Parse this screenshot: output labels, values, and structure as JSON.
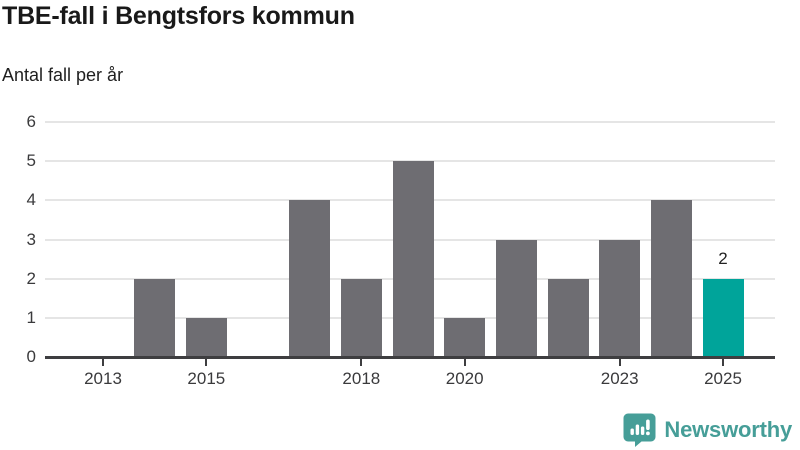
{
  "title": "TBE-fall i Bengtsfors kommun",
  "subtitle": "Antal fall per år",
  "branding": {
    "logo_text": "Newsworthy",
    "logo_icon": "newsworthy-chart-bubble-icon",
    "logo_color": "#469e98"
  },
  "colors": {
    "bar": "#6e6d72",
    "highlight_bar": "#00a49a",
    "gridline": "#e5e5e5",
    "axis": "#3e3e40",
    "title_text": "#191919",
    "tick_text": "#3a3a3c"
  },
  "chart_data": {
    "type": "bar",
    "title": "TBE-fall i Bengtsfors kommun",
    "ylabel": "Antal fall per år",
    "xlabel": "",
    "categories": [
      2013,
      2014,
      2015,
      2016,
      2017,
      2018,
      2019,
      2020,
      2021,
      2022,
      2023,
      2024,
      2025
    ],
    "values": [
      0,
      2,
      1,
      0,
      4,
      2,
      5,
      1,
      3,
      2,
      3,
      4,
      2
    ],
    "x_tick_labels": [
      "2013",
      "2015",
      "2018",
      "2020",
      "2023",
      "2025"
    ],
    "y_ticks": [
      0,
      1,
      2,
      3,
      4,
      5,
      6
    ],
    "ylim": [
      0,
      6
    ],
    "grid": true,
    "legend": "none",
    "highlight_category": 2025,
    "highlight_value_label": "2"
  }
}
